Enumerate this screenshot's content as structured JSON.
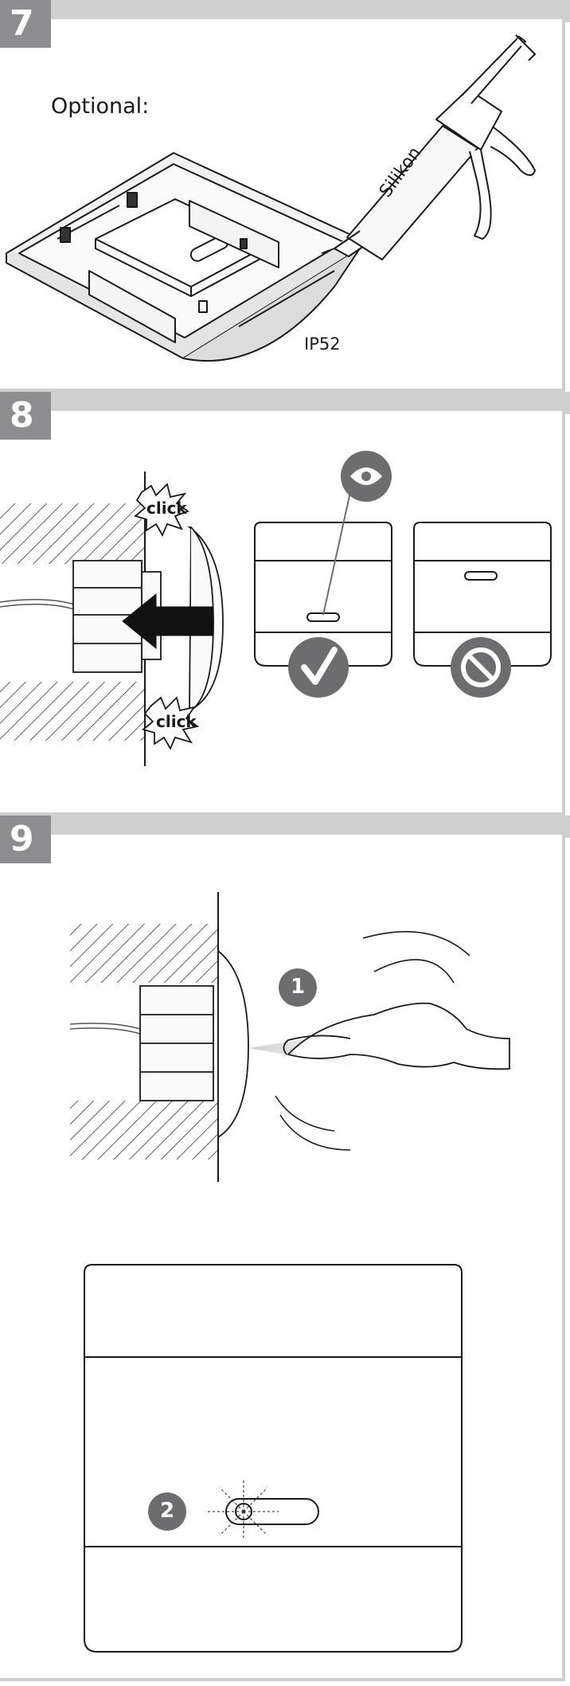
{
  "steps": [
    {
      "number": "7",
      "optional_label": "Optional:",
      "sealant_label": "Silikon",
      "rating_label": "IP52"
    },
    {
      "number": "8",
      "click_top": "click",
      "click_bottom": "click"
    },
    {
      "number": "9",
      "callout_1": "1",
      "callout_2": "2"
    }
  ],
  "colors": {
    "frame": "#cfcfd0",
    "badge": "#8d8d8f",
    "icon": "#6d6d6f",
    "arrow": "#1a1a1a"
  }
}
